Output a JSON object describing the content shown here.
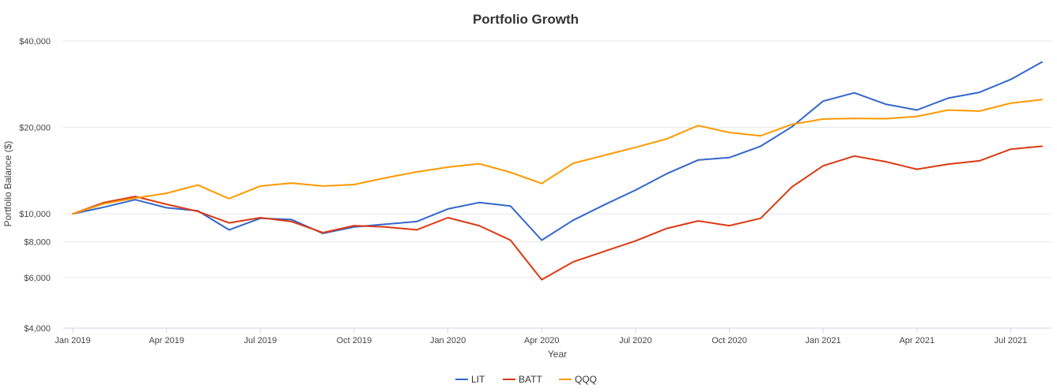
{
  "chart_data": {
    "type": "line",
    "title": "Portfolio Growth",
    "xlabel": "Year",
    "ylabel": "Portfolio Balance ($)",
    "y_scale": "log",
    "ylim": [
      4000,
      40000
    ],
    "y_ticks": [
      {
        "value": 4000,
        "label": "$4,000"
      },
      {
        "value": 6000,
        "label": "$6,000"
      },
      {
        "value": 8000,
        "label": "$8,000"
      },
      {
        "value": 10000,
        "label": "$10,000"
      },
      {
        "value": 20000,
        "label": "$20,000"
      },
      {
        "value": 40000,
        "label": "$40,000"
      }
    ],
    "x_ticks": [
      {
        "index": 0,
        "label": "Jan 2019"
      },
      {
        "index": 3,
        "label": "Apr 2019"
      },
      {
        "index": 6,
        "label": "Jul 2019"
      },
      {
        "index": 9,
        "label": "Oct 2019"
      },
      {
        "index": 12,
        "label": "Jan 2020"
      },
      {
        "index": 15,
        "label": "Apr 2020"
      },
      {
        "index": 18,
        "label": "Jul 2020"
      },
      {
        "index": 21,
        "label": "Oct 2020"
      },
      {
        "index": 24,
        "label": "Jan 2021"
      },
      {
        "index": 27,
        "label": "Apr 2021"
      },
      {
        "index": 30,
        "label": "Jul 2021"
      }
    ],
    "x_count": 32,
    "legend_position": "bottom-center",
    "series": [
      {
        "name": "LIT",
        "color": "#3366cc",
        "values": [
          10000,
          10550,
          11200,
          10500,
          10250,
          8800,
          9650,
          9550,
          8550,
          9000,
          9200,
          9400,
          10400,
          10950,
          10650,
          8100,
          9500,
          10750,
          12100,
          13800,
          15400,
          15700,
          17200,
          20100,
          24700,
          26400,
          24100,
          23000,
          25300,
          26500,
          29400,
          33800
        ]
      },
      {
        "name": "BATT",
        "color": "#dc3912",
        "values": [
          10000,
          10950,
          11500,
          10800,
          10200,
          9300,
          9700,
          9400,
          8600,
          9100,
          9000,
          8800,
          9700,
          9100,
          8100,
          5900,
          6800,
          7400,
          8050,
          8900,
          9450,
          9100,
          9650,
          12400,
          14700,
          15900,
          15200,
          14300,
          14900,
          15300,
          16800,
          17200
        ]
      },
      {
        "name": "QQQ",
        "color": "#ff9900",
        "values": [
          10000,
          10850,
          11350,
          11800,
          12600,
          11300,
          12500,
          12800,
          12500,
          12650,
          13350,
          14000,
          14550,
          14950,
          13950,
          12750,
          15000,
          16000,
          17050,
          18250,
          20300,
          19200,
          18700,
          20500,
          21400,
          21500,
          21450,
          21850,
          23000,
          22800,
          24300,
          25000
        ]
      }
    ]
  }
}
